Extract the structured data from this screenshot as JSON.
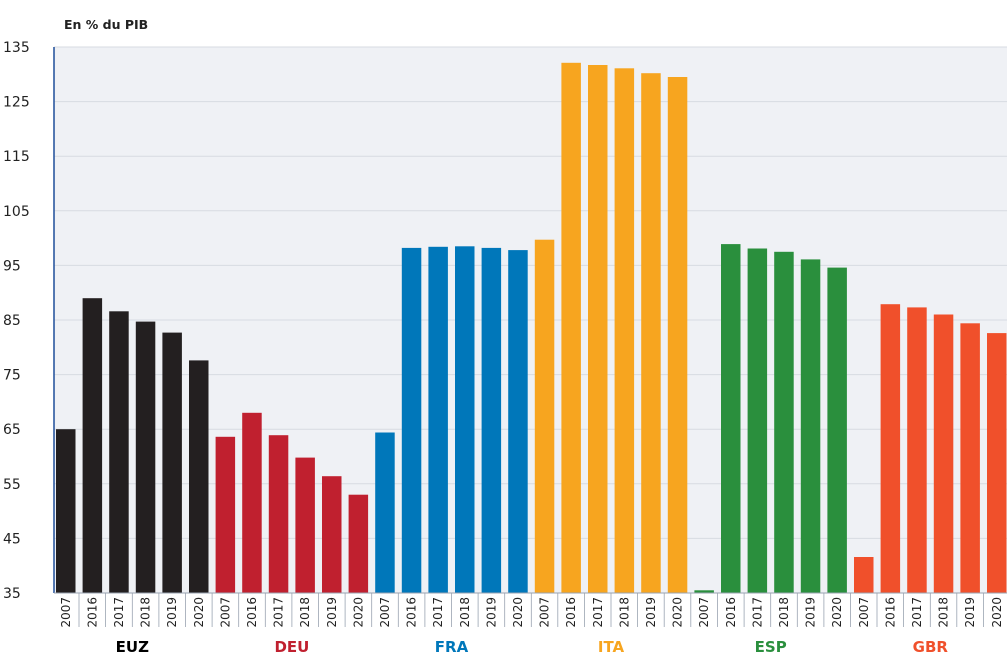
{
  "chart_data": {
    "type": "bar",
    "title": "",
    "unit_label": "En % du PIB",
    "ylim": [
      35,
      135
    ],
    "yticks": [
      35,
      45,
      55,
      65,
      75,
      85,
      95,
      105,
      115,
      125,
      135
    ],
    "grid": true,
    "years": [
      "2007",
      "2016",
      "2017",
      "2018",
      "2019",
      "2020"
    ],
    "groups": [
      {
        "name": "EUZ",
        "color": "#231f20",
        "values": [
          65,
          89,
          86.6,
          84.7,
          82.7,
          77.6
        ]
      },
      {
        "name": "DEU",
        "color": "#c0202f",
        "values": [
          63.6,
          68,
          63.9,
          59.8,
          56.4,
          53
        ]
      },
      {
        "name": "FRA",
        "color": "#0077ba",
        "values": [
          64.4,
          98.2,
          98.4,
          98.5,
          98.2,
          97.8
        ]
      },
      {
        "name": "ITA",
        "color": "#f7a51f",
        "values": [
          99.7,
          132.1,
          131.7,
          131.1,
          130.2,
          129.5
        ]
      },
      {
        "name": "ESP",
        "color": "#2a8f3d",
        "values": [
          35.5,
          98.9,
          98.1,
          97.5,
          96.1,
          94.6
        ]
      },
      {
        "name": "GBR",
        "color": "#f0502b",
        "values": [
          41.6,
          87.9,
          87.3,
          86,
          84.4,
          82.6
        ]
      }
    ],
    "colors": {
      "background": "#eff1f5",
      "grid": "#d7dbe2",
      "axis": "#1f4e9a"
    }
  }
}
